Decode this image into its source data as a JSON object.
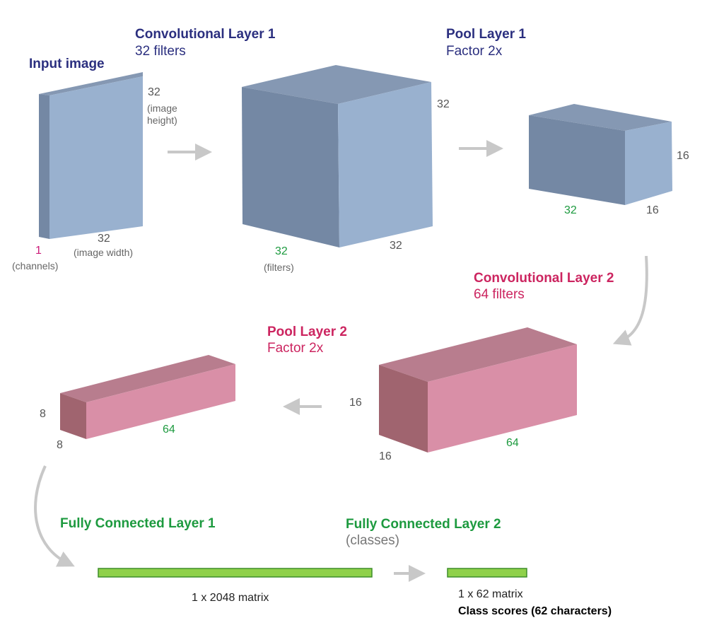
{
  "colors": {
    "blue_front": "#99b1cf",
    "blue_side": "#7488a4",
    "blue_top": "#8598b3",
    "pink_front": "#d98fa7",
    "pink_side": "#a0646f",
    "pink_top": "#b87d8e",
    "fc_bar_fill": "#8fd14a",
    "fc_bar_border": "#3e8e2a",
    "arrow": "#c8c8c8",
    "title_blue": "#2b2f7f",
    "title_pink": "#cc2560",
    "title_green": "#1d9a3f"
  },
  "input": {
    "title": "Input image",
    "height": "32",
    "height_note": "(image\nheight)",
    "width": "32",
    "width_note": "(image width)",
    "channels": "1",
    "channels_note": "(channels)"
  },
  "conv1": {
    "title": "Convolutional Layer 1",
    "subtitle": "32 filters",
    "height": "32",
    "width": "32",
    "depth": "32",
    "depth_note": "(filters)"
  },
  "pool1": {
    "title": "Pool Layer 1",
    "subtitle": "Factor 2x",
    "height": "16",
    "width": "16",
    "depth": "32"
  },
  "conv2": {
    "title": "Convolutional Layer 2",
    "subtitle": "64 filters",
    "height": "16",
    "width": "16",
    "depth": "64"
  },
  "pool2": {
    "title": "Pool Layer 2",
    "subtitle": "Factor 2x",
    "height": "8",
    "width": "8",
    "depth": "64"
  },
  "fc1": {
    "title": "Fully Connected Layer 1",
    "matrix": "1 x 2048 matrix"
  },
  "fc2": {
    "title": "Fully Connected Layer 2",
    "subtitle": "(classes)",
    "matrix": "1 x 62 matrix",
    "scores": "Class scores (62 characters)"
  }
}
